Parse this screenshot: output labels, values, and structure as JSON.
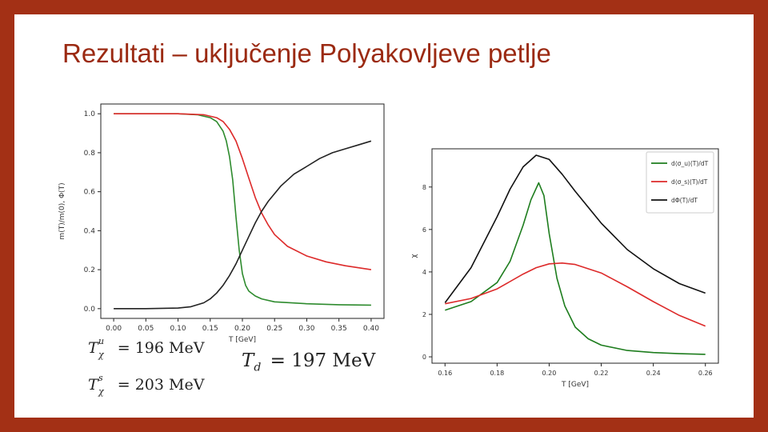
{
  "slide": {
    "title": "Rezultati – uključenje Polyakovljeve petlje",
    "colors": {
      "frame": "#a33015",
      "title": "#9b2a12",
      "background": "#ffffff"
    }
  },
  "equations": [
    {
      "symbol": "T",
      "sup": "u",
      "sub": "χ",
      "rhs": "= 196 MeV"
    },
    {
      "symbol": "T",
      "sup": "s",
      "sub": "χ",
      "rhs": "= 203 MeV"
    },
    {
      "symbol": "T",
      "sup": "",
      "sub": "d",
      "rhs": "= 197 MeV"
    }
  ],
  "chart_data": [
    {
      "type": "line",
      "title": "",
      "xlabel": "T [GeV]",
      "ylabel": "m(T)/m(0), Φ(T)",
      "xlim": [
        -0.02,
        0.42
      ],
      "ylim": [
        -0.05,
        1.05
      ],
      "xticks": [
        "0.00",
        "0.05",
        "0.10",
        "0.15",
        "0.20",
        "0.25",
        "0.30",
        "0.35",
        "0.40"
      ],
      "yticks": [
        "0.0",
        "0.2",
        "0.4",
        "0.6",
        "0.8",
        "1.0"
      ],
      "legend": "none",
      "grid": false,
      "series": [
        {
          "color": "#2e8b2e",
          "x": [
            0.0,
            0.05,
            0.1,
            0.13,
            0.15,
            0.16,
            0.17,
            0.175,
            0.18,
            0.185,
            0.19,
            0.195,
            0.2,
            0.205,
            0.21,
            0.22,
            0.23,
            0.25,
            0.3,
            0.35,
            0.4
          ],
          "y": [
            1.0,
            1.0,
            1.0,
            0.995,
            0.98,
            0.96,
            0.91,
            0.86,
            0.78,
            0.66,
            0.47,
            0.3,
            0.18,
            0.12,
            0.09,
            0.065,
            0.05,
            0.035,
            0.025,
            0.02,
            0.018
          ]
        },
        {
          "color": "#dd2a2a",
          "x": [
            0.0,
            0.05,
            0.1,
            0.14,
            0.16,
            0.17,
            0.18,
            0.19,
            0.2,
            0.21,
            0.22,
            0.23,
            0.24,
            0.25,
            0.27,
            0.3,
            0.33,
            0.36,
            0.4
          ],
          "y": [
            1.0,
            1.0,
            1.0,
            0.995,
            0.98,
            0.96,
            0.92,
            0.86,
            0.77,
            0.67,
            0.57,
            0.49,
            0.43,
            0.38,
            0.32,
            0.27,
            0.24,
            0.22,
            0.2
          ]
        },
        {
          "color": "#222222",
          "x": [
            0.0,
            0.05,
            0.1,
            0.12,
            0.14,
            0.15,
            0.16,
            0.17,
            0.18,
            0.19,
            0.2,
            0.21,
            0.22,
            0.23,
            0.24,
            0.26,
            0.28,
            0.3,
            0.32,
            0.34,
            0.36,
            0.38,
            0.4
          ],
          "y": [
            0.0,
            0.0,
            0.003,
            0.01,
            0.03,
            0.05,
            0.08,
            0.12,
            0.17,
            0.23,
            0.3,
            0.37,
            0.44,
            0.5,
            0.55,
            0.63,
            0.69,
            0.73,
            0.77,
            0.8,
            0.82,
            0.84,
            0.86
          ]
        }
      ]
    },
    {
      "type": "line",
      "title": "",
      "xlabel": "T [GeV]",
      "ylabel": "χ",
      "xlim": [
        0.155,
        0.265
      ],
      "ylim": [
        -0.3,
        9.8
      ],
      "xticks": [
        "0.16",
        "0.18",
        "0.20",
        "0.22",
        "0.24",
        "0.26"
      ],
      "yticks": [
        "0",
        "2",
        "4",
        "6",
        "8"
      ],
      "legend": "top-right",
      "grid": false,
      "series": [
        {
          "name": "d⟨σ_u⟩(T)/dT",
          "color": "#1e7d1e",
          "x": [
            0.16,
            0.17,
            0.18,
            0.185,
            0.19,
            0.193,
            0.196,
            0.198,
            0.2,
            0.203,
            0.206,
            0.21,
            0.215,
            0.22,
            0.23,
            0.24,
            0.25,
            0.26
          ],
          "y": [
            2.2,
            2.6,
            3.5,
            4.5,
            6.2,
            7.4,
            8.2,
            7.6,
            5.8,
            3.7,
            2.4,
            1.4,
            0.85,
            0.55,
            0.3,
            0.2,
            0.15,
            0.12
          ]
        },
        {
          "name": "d⟨σ_s⟩(T)/dT",
          "color": "#dd2a2a",
          "x": [
            0.16,
            0.17,
            0.18,
            0.19,
            0.195,
            0.2,
            0.205,
            0.21,
            0.22,
            0.23,
            0.24,
            0.25,
            0.26
          ],
          "y": [
            2.5,
            2.75,
            3.2,
            3.9,
            4.2,
            4.38,
            4.42,
            4.35,
            3.95,
            3.3,
            2.6,
            1.95,
            1.45
          ]
        },
        {
          "name": "dΦ(T)/dT",
          "color": "#111111",
          "x": [
            0.16,
            0.17,
            0.18,
            0.185,
            0.19,
            0.195,
            0.2,
            0.205,
            0.21,
            0.22,
            0.23,
            0.24,
            0.25,
            0.26
          ],
          "y": [
            2.55,
            4.2,
            6.6,
            7.9,
            8.95,
            9.5,
            9.3,
            8.6,
            7.8,
            6.3,
            5.05,
            4.15,
            3.45,
            3.0
          ]
        }
      ]
    }
  ]
}
